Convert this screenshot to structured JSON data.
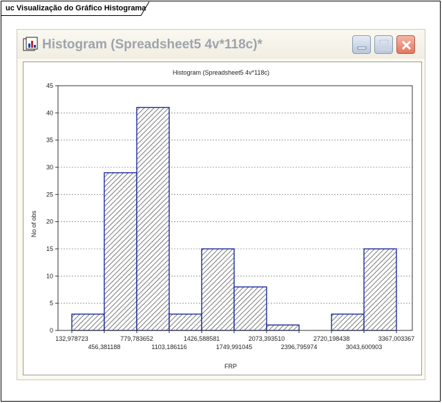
{
  "diagram": {
    "tab_label": "uc Visualização do Gráfico Histograma"
  },
  "window": {
    "title": "Histogram (Spreadsheet5 4v*118c)*",
    "buttons": {
      "minimize": "minimize-icon",
      "maximize": "maximize-icon",
      "close": "close-icon"
    },
    "icon": "histogram-app-icon"
  },
  "colors": {
    "bar_stroke": "#1c2a9c",
    "hatch": "#555555",
    "window_bg": "#fdf9ef"
  },
  "chart_data": {
    "type": "bar",
    "title": "Histogram (Spreadsheet5 4v*118c)",
    "xlabel": "FRP",
    "ylabel": "No of obs",
    "ylim": [
      0,
      45
    ],
    "y_ticks": [
      "0",
      "5",
      "10",
      "15",
      "20",
      "25",
      "30",
      "35",
      "40",
      "45"
    ],
    "x_tick_labels_row1": [
      "132,978723",
      "779,783652",
      "1426,588581",
      "2073,393510",
      "2720,198438",
      "3367,003367"
    ],
    "x_tick_labels_row2": [
      "456,381188",
      "1103,186116",
      "1749,991045",
      "2396,795974",
      "3043,600903"
    ],
    "bin_edges": [
      132.978723,
      456.381188,
      779.783652,
      1103.186116,
      1426.588581,
      1749.991045,
      2073.39351,
      2396.795974,
      2720.198438,
      3043.600903,
      3367.003367
    ],
    "values": [
      3,
      29,
      41,
      3,
      15,
      8,
      1,
      0,
      3,
      15
    ],
    "grid": true,
    "legend": "none"
  }
}
